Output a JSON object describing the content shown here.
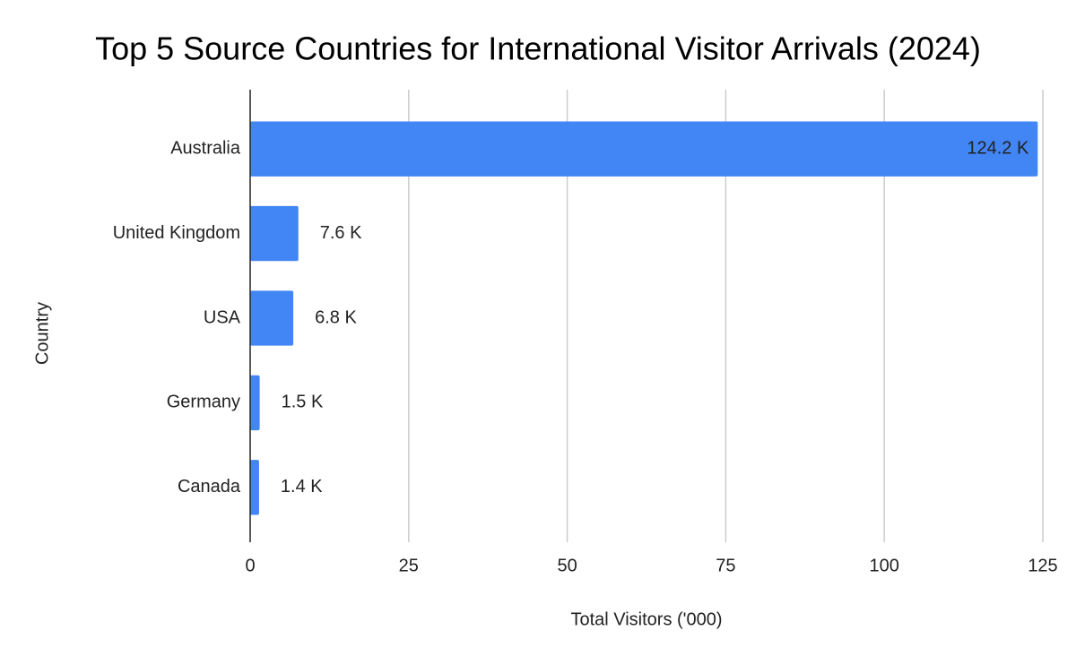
{
  "chart_data": {
    "type": "hbar",
    "title": "Top 5 Source Countries for International Visitor Arrivals (2024)",
    "x_label": "Total Visitors ('000)",
    "y_label": "Country",
    "categories": [
      "Australia",
      "United Kingdom",
      "USA",
      "Germany",
      "Canada"
    ],
    "values": [
      124.2,
      7.6,
      6.8,
      1.5,
      1.4
    ],
    "value_labels": [
      "124.2 K",
      "7.6 K",
      "6.8 K",
      "1.5 K",
      "1.4 K"
    ],
    "color": "#4285f4",
    "xlim": [
      0,
      125
    ],
    "xticks": [
      0,
      25,
      50,
      75,
      100,
      125
    ],
    "grid": true
  }
}
